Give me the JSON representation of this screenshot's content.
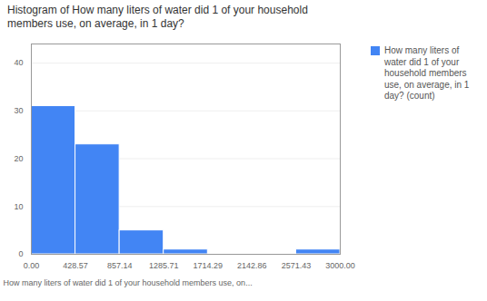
{
  "chart_data": {
    "type": "histogram",
    "title": "Histogram of How many liters of water did 1 of your household\nmembers use, on average, in 1 day?",
    "xlabel": "How many liters of water did 1 of your household members use, on...",
    "bins": [
      0.0,
      428.57,
      857.14,
      1285.71,
      1714.29,
      2142.86,
      2571.43,
      3000.0
    ],
    "series": [
      {
        "name": "How many liters of\nwater did 1 of your\nhousehold members\nuse, on average, in 1\nday? (count)",
        "color": "#4285F4",
        "values": [
          31,
          23,
          5,
          1,
          0,
          0,
          1
        ]
      }
    ],
    "xlim": [
      0.0,
      3000.0
    ],
    "xticks": [
      {
        "value": 0.0,
        "label": "0.00"
      },
      428.57,
      857.14,
      1285.71,
      1714.29,
      2142.86,
      2571.43,
      {
        "value": 3000.0,
        "label": "3000.00"
      }
    ],
    "ylim": [
      0,
      44
    ],
    "yticks": [
      0,
      10,
      20,
      30,
      40
    ],
    "grid": true,
    "legend": "right"
  }
}
